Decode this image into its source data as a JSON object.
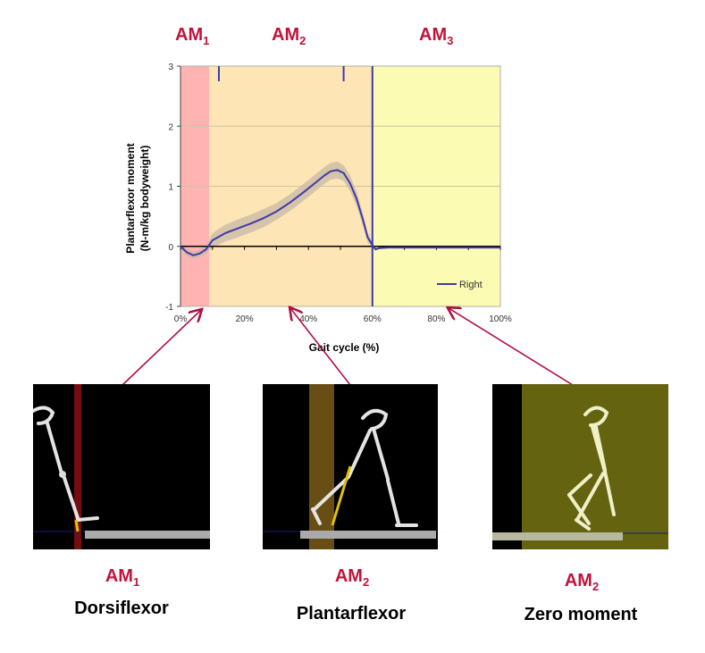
{
  "top_labels": [
    {
      "main": "AM",
      "sub": "1"
    },
    {
      "main": "AM",
      "sub": "2"
    },
    {
      "main": "AM",
      "sub": "3"
    }
  ],
  "colors": {
    "accent": "#c0133b",
    "zone1": "#ffb3b3",
    "zone2": "#fde5b6",
    "zone3": "#fbfbb4",
    "line": "#3f3ba6",
    "band": "#c8b8a6"
  },
  "chart_data": {
    "type": "line",
    "xlabel": "Gait cycle (%)",
    "ylabel_line1": "Plantarflexor moment",
    "ylabel_line2": "(N-m/kg bodyweight)",
    "xlim": [
      0,
      100
    ],
    "ylim": [
      -1,
      3
    ],
    "x_ticks": [
      "0%",
      "20%",
      "40%",
      "60%",
      "80%",
      "100%"
    ],
    "y_ticks": [
      "-1",
      "0",
      "1",
      "2",
      "3"
    ],
    "zones": [
      {
        "label": "AM1",
        "from": 0,
        "to": 9,
        "color": "#ffb3b3"
      },
      {
        "label": "AM2",
        "from": 9,
        "to": 60,
        "color": "#fde5b6"
      },
      {
        "label": "AM3",
        "from": 60,
        "to": 100,
        "color": "#fbfbb4"
      }
    ],
    "event_markers_x": [
      12,
      51
    ],
    "toe_off_x": 60,
    "legend": {
      "entries": [
        "Right"
      ],
      "placement": "bottom-right"
    },
    "series": [
      {
        "name": "Right",
        "x": [
          0,
          2,
          4,
          6,
          8,
          10,
          14,
          18,
          22,
          26,
          30,
          34,
          38,
          42,
          45,
          47,
          49,
          51,
          53,
          55,
          57,
          58.5,
          60,
          61,
          62,
          65,
          70,
          80,
          90,
          100
        ],
        "y": [
          0,
          -0.1,
          -0.15,
          -0.12,
          -0.05,
          0.1,
          0.22,
          0.3,
          0.38,
          0.47,
          0.58,
          0.72,
          0.88,
          1.05,
          1.18,
          1.25,
          1.27,
          1.22,
          1.05,
          0.8,
          0.45,
          0.15,
          0.02,
          -0.05,
          -0.03,
          -0.02,
          -0.02,
          -0.02,
          -0.02,
          -0.02
        ],
        "band": [
          0.05,
          0.06,
          0.06,
          0.06,
          0.07,
          0.12,
          0.14,
          0.15,
          0.15,
          0.15,
          0.14,
          0.14,
          0.14,
          0.14,
          0.14,
          0.14,
          0.14,
          0.13,
          0.13,
          0.12,
          0.1,
          0.08,
          0.05,
          0.02,
          0.02,
          0.01,
          0.01,
          0.01,
          0.01,
          0.01
        ]
      }
    ]
  },
  "panels": [
    {
      "am_main": "AM",
      "am_sub": "1",
      "name": "Dorsiflexor"
    },
    {
      "am_main": "AM",
      "am_sub": "2",
      "name": "Plantarflexor"
    },
    {
      "am_main": "AM",
      "am_sub": "2",
      "name": "Zero moment"
    }
  ]
}
